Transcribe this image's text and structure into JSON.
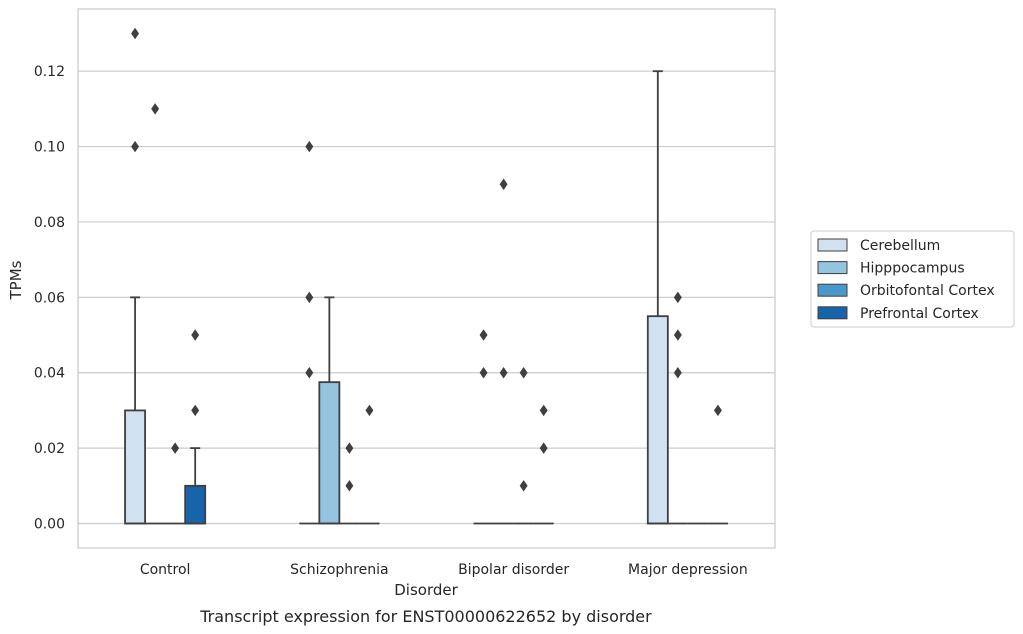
{
  "caption": "Transcript expression for ENST00000622652 by disorder",
  "chart_data": {
    "type": "box",
    "title": "",
    "xlabel": "Disorder",
    "ylabel": "TPMs",
    "ylim": [
      -0.0065,
      0.1365
    ],
    "yticks": [
      "0.00",
      "0.02",
      "0.04",
      "0.06",
      "0.08",
      "0.10",
      "0.12"
    ],
    "ytick_values": [
      0,
      0.02,
      0.04,
      0.06,
      0.08,
      0.1,
      0.12
    ],
    "grid": true,
    "legend_position": "right",
    "categories": [
      "Control",
      "Schizophrenia",
      "Bipolar disorder",
      "Major depression"
    ],
    "series": [
      {
        "name": "Cerebellum",
        "color": "#d0e1f2",
        "boxes": [
          {
            "q1": 0,
            "median": 0,
            "q3": 0.03,
            "whisker_low": 0,
            "whisker_high": 0.06,
            "outliers": [
              0.1,
              0.13
            ]
          },
          {
            "q1": 0,
            "median": 0,
            "q3": 0,
            "whisker_low": 0,
            "whisker_high": 0,
            "outliers": [
              0.04,
              0.06,
              0.1
            ]
          },
          {
            "q1": 0,
            "median": 0,
            "q3": 0,
            "whisker_low": 0,
            "whisker_high": 0,
            "outliers": [
              0.04,
              0.05
            ]
          },
          {
            "q1": 0,
            "median": 0,
            "q3": 0.055,
            "whisker_low": 0,
            "whisker_high": 0.12,
            "outliers": []
          }
        ]
      },
      {
        "name": "Hipppocampus",
        "color": "#94c4df",
        "boxes": [
          {
            "q1": 0,
            "median": 0,
            "q3": 0,
            "whisker_low": 0,
            "whisker_high": 0,
            "outliers": [
              0.11
            ]
          },
          {
            "q1": 0,
            "median": 0,
            "q3": 0.0375,
            "whisker_low": 0,
            "whisker_high": 0.06,
            "outliers": []
          },
          {
            "q1": 0,
            "median": 0,
            "q3": 0,
            "whisker_low": 0,
            "whisker_high": 0,
            "outliers": [
              0.04,
              0.09
            ]
          },
          {
            "q1": 0,
            "median": 0,
            "q3": 0,
            "whisker_low": 0,
            "whisker_high": 0,
            "outliers": [
              0.04,
              0.05,
              0.06
            ]
          }
        ]
      },
      {
        "name": "Orbitofontal Cortex",
        "color": "#4a98c9",
        "boxes": [
          {
            "q1": 0,
            "median": 0,
            "q3": 0,
            "whisker_low": 0,
            "whisker_high": 0,
            "outliers": [
              0.02
            ]
          },
          {
            "q1": 0,
            "median": 0,
            "q3": 0,
            "whisker_low": 0,
            "whisker_high": 0,
            "outliers": [
              0.01,
              0.02
            ]
          },
          {
            "q1": 0,
            "median": 0,
            "q3": 0,
            "whisker_low": 0,
            "whisker_high": 0,
            "outliers": [
              0.01,
              0.04
            ]
          },
          {
            "q1": 0,
            "median": 0,
            "q3": 0,
            "whisker_low": 0,
            "whisker_high": 0,
            "outliers": []
          }
        ]
      },
      {
        "name": "Prefrontal Cortex",
        "color": "#1764ab",
        "boxes": [
          {
            "q1": 0,
            "median": 0,
            "q3": 0.01,
            "whisker_low": 0,
            "whisker_high": 0.02,
            "outliers": [
              0.03,
              0.05
            ]
          },
          {
            "q1": 0,
            "median": 0,
            "q3": 0,
            "whisker_low": 0,
            "whisker_high": 0,
            "outliers": [
              0.03
            ]
          },
          {
            "q1": 0,
            "median": 0,
            "q3": 0,
            "whisker_low": 0,
            "whisker_high": 0,
            "outliers": [
              0.02,
              0.03
            ]
          },
          {
            "q1": 0,
            "median": 0,
            "q3": 0,
            "whisker_low": 0,
            "whisker_high": 0,
            "outliers": [
              0.03
            ]
          }
        ]
      }
    ]
  }
}
